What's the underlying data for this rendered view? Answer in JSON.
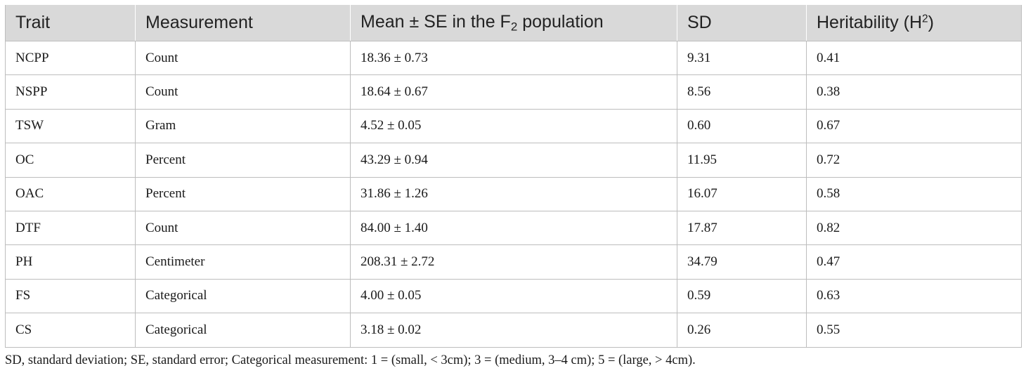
{
  "table": {
    "headers": {
      "trait": "Trait",
      "measurement": "Measurement",
      "mean_prefix": "Mean ± SE in the F",
      "mean_sub": "2",
      "mean_suffix": " population",
      "sd": "SD",
      "heritability_prefix": "Heritability (H",
      "heritability_sup": "2",
      "heritability_suffix": ")"
    },
    "rows": [
      {
        "trait": "NCPP",
        "measurement": "Count",
        "mean_se": "18.36 ± 0.73",
        "sd": "9.31",
        "heritability": "0.41"
      },
      {
        "trait": "NSPP",
        "measurement": "Count",
        "mean_se": "18.64 ± 0.67",
        "sd": "8.56",
        "heritability": "0.38"
      },
      {
        "trait": "TSW",
        "measurement": "Gram",
        "mean_se": "4.52 ± 0.05",
        "sd": "0.60",
        "heritability": "0.67"
      },
      {
        "trait": "OC",
        "measurement": "Percent",
        "mean_se": "43.29 ± 0.94",
        "sd": "11.95",
        "heritability": "0.72"
      },
      {
        "trait": "OAC",
        "measurement": "Percent",
        "mean_se": "31.86 ± 1.26",
        "sd": "16.07",
        "heritability": "0.58"
      },
      {
        "trait": "DTF",
        "measurement": "Count",
        "mean_se": "84.00 ± 1.40",
        "sd": "17.87",
        "heritability": "0.82"
      },
      {
        "trait": "PH",
        "measurement": "Centimeter",
        "mean_se": "208.31 ± 2.72",
        "sd": "34.79",
        "heritability": "0.47"
      },
      {
        "trait": "FS",
        "measurement": "Categorical",
        "mean_se": "4.00 ± 0.05",
        "sd": "0.59",
        "heritability": "0.63"
      },
      {
        "trait": "CS",
        "measurement": "Categorical",
        "mean_se": "3.18 ± 0.02",
        "sd": "0.26",
        "heritability": "0.55"
      }
    ]
  },
  "footnote": "SD, standard deviation; SE, standard error; Categorical measurement: 1 = (small, < 3cm); 3 = (medium, 3–4 cm); 5 = (large, > 4cm).",
  "colors": {
    "header_background": "#d9d9d9",
    "border": "#bdbdbd",
    "text": "#1a1a1a"
  }
}
